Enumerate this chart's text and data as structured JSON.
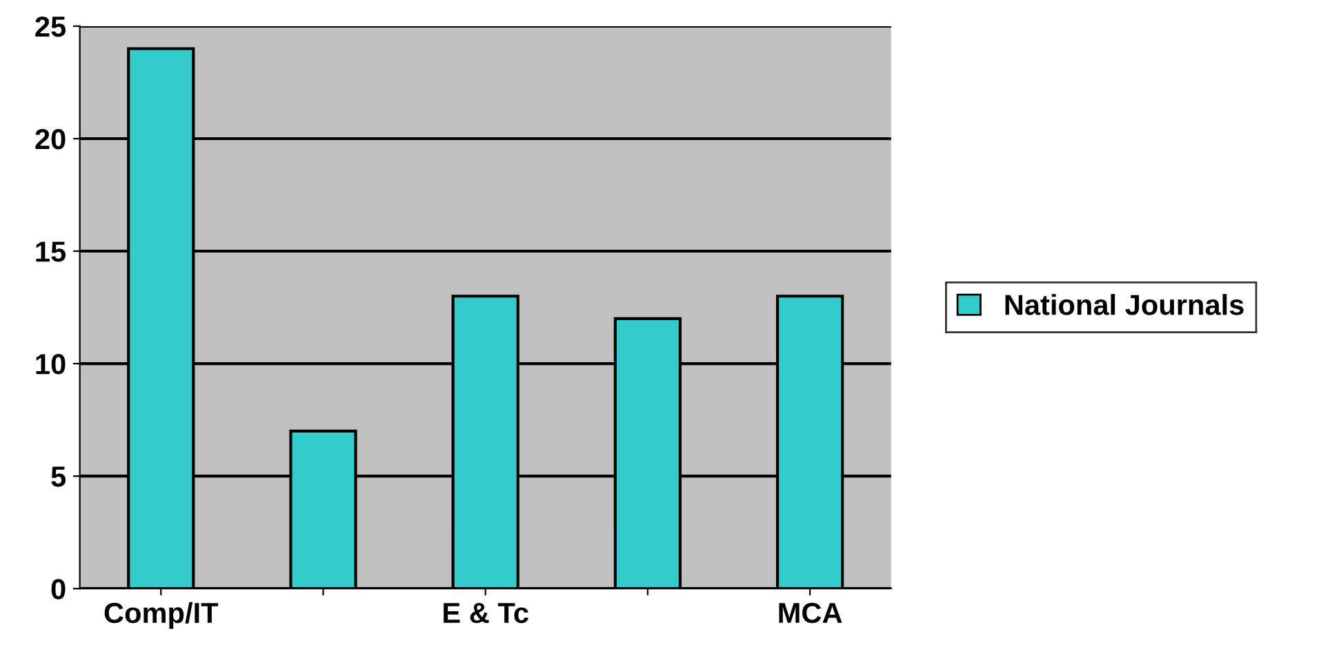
{
  "chart_data": {
    "type": "bar",
    "categories": [
      "Comp/IT",
      null,
      "E & Tc",
      null,
      "MCA"
    ],
    "series": [
      {
        "name": "National Journals",
        "color": "#33cccc",
        "values": [
          24,
          7,
          13,
          12,
          13
        ]
      }
    ],
    "ylim": [
      0,
      25
    ],
    "yticks": [
      0,
      5,
      10,
      15,
      20,
      25
    ],
    "grid": "y",
    "legend": "right"
  }
}
